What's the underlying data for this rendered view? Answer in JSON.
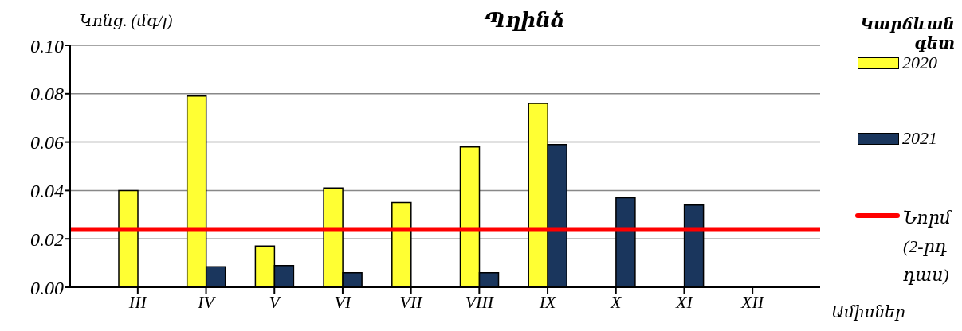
{
  "chart_data": {
    "type": "bar",
    "title": "Պղինձ",
    "ylabel": "Կոնց. (մգ/լ)",
    "xlabel": "Ամիսներ",
    "legend_title": "Կարճևան գետ",
    "categories": [
      "III",
      "IV",
      "V",
      "VI",
      "VII",
      "VIII",
      "IX",
      "X",
      "XI",
      "XII"
    ],
    "series": [
      {
        "name": "2020",
        "color": "#ffff33",
        "values": [
          0.04,
          0.079,
          0.017,
          0.041,
          0.035,
          0.058,
          0.076,
          null,
          null,
          null
        ]
      },
      {
        "name": "2021",
        "color": "#1a365d",
        "values": [
          null,
          0.0085,
          0.009,
          0.006,
          null,
          0.006,
          0.059,
          0.037,
          0.034,
          null
        ]
      }
    ],
    "ylim": [
      0,
      0.1
    ],
    "yticks": [
      {
        "value": 0,
        "label": "0.00"
      },
      0.02,
      0.04,
      0.06,
      0.08,
      {
        "value": 0.1,
        "label": "0.10"
      }
    ],
    "ref_lines": [
      {
        "axis": "y",
        "value": 0.024,
        "label": "Նորմ (2-րդ դաս)",
        "color": "#ff0000"
      }
    ],
    "grid": "y",
    "legend": "right"
  }
}
